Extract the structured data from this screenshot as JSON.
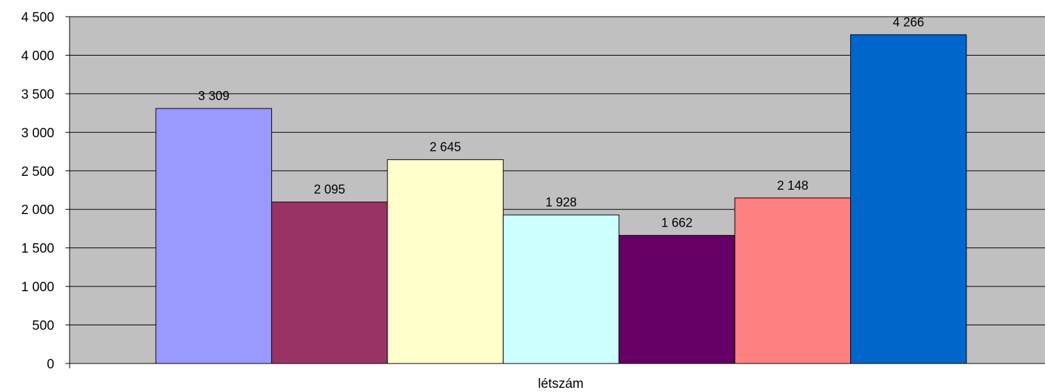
{
  "chart_data": {
    "type": "bar",
    "categories": [
      "létszám"
    ],
    "series": [
      {
        "values": [
          3309
        ],
        "label": "3 309",
        "color": "#9999ff"
      },
      {
        "values": [
          2095
        ],
        "label": "2 095",
        "color": "#993366"
      },
      {
        "values": [
          2645
        ],
        "label": "2 645",
        "color": "#ffffcc"
      },
      {
        "values": [
          1928
        ],
        "label": "1 928",
        "color": "#ccffff"
      },
      {
        "values": [
          1662
        ],
        "label": "1 662",
        "color": "#660066"
      },
      {
        "values": [
          2148
        ],
        "label": "2 148",
        "color": "#ff8080"
      },
      {
        "values": [
          4266
        ],
        "label": "4 266",
        "color": "#0066cc"
      }
    ],
    "ylim": [
      0,
      4500
    ],
    "yticks": [
      0,
      500,
      1000,
      1500,
      2000,
      2500,
      3000,
      3500,
      4000,
      4500
    ],
    "ytick_labels": [
      "0",
      "500",
      "1 000",
      "1 500",
      "2 000",
      "2 500",
      "3 000",
      "3 500",
      "4 000",
      "4 500"
    ],
    "grid": true,
    "plot_background": "#c0c0c0"
  }
}
